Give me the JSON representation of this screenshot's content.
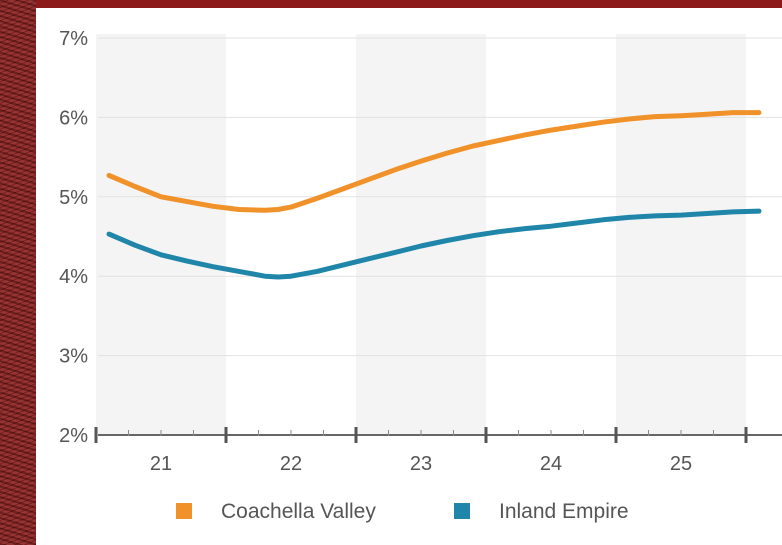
{
  "chart_data": {
    "type": "line",
    "title": "",
    "xlabel": "",
    "ylabel": "",
    "x": [
      20.6,
      20.8,
      21.0,
      21.2,
      21.4,
      21.6,
      21.8,
      21.9,
      22.0,
      22.2,
      22.4,
      22.6,
      22.8,
      23.0,
      23.2,
      23.4,
      23.6,
      23.8,
      24.0,
      24.2,
      24.4,
      24.6,
      24.8,
      25.0,
      25.2,
      25.4,
      25.6
    ],
    "x_ticks": [
      21,
      22,
      23,
      24,
      25
    ],
    "x_tick_labels": [
      "21",
      "22",
      "23",
      "24",
      "25"
    ],
    "ylim": [
      2,
      7
    ],
    "y_ticks": [
      2,
      3,
      4,
      5,
      6,
      7
    ],
    "y_tick_labels": [
      "2%",
      "3%",
      "4%",
      "5%",
      "6%",
      "7%"
    ],
    "series": [
      {
        "name": "Coachella Valley",
        "color": "#f0912a",
        "values": [
          5.27,
          5.13,
          5.0,
          4.94,
          4.88,
          4.84,
          4.83,
          4.84,
          4.87,
          4.98,
          5.1,
          5.22,
          5.34,
          5.45,
          5.55,
          5.64,
          5.71,
          5.78,
          5.84,
          5.89,
          5.94,
          5.98,
          6.01,
          6.02,
          6.04,
          6.06,
          6.06
        ]
      },
      {
        "name": "Inland Empire",
        "color": "#1f86aa",
        "values": [
          4.53,
          4.39,
          4.27,
          4.19,
          4.12,
          4.06,
          4.0,
          3.99,
          4.0,
          4.06,
          4.14,
          4.22,
          4.3,
          4.38,
          4.45,
          4.51,
          4.56,
          4.6,
          4.63,
          4.67,
          4.71,
          4.74,
          4.76,
          4.77,
          4.79,
          4.81,
          4.82
        ]
      }
    ],
    "grid": true,
    "legend_position": "bottom"
  }
}
